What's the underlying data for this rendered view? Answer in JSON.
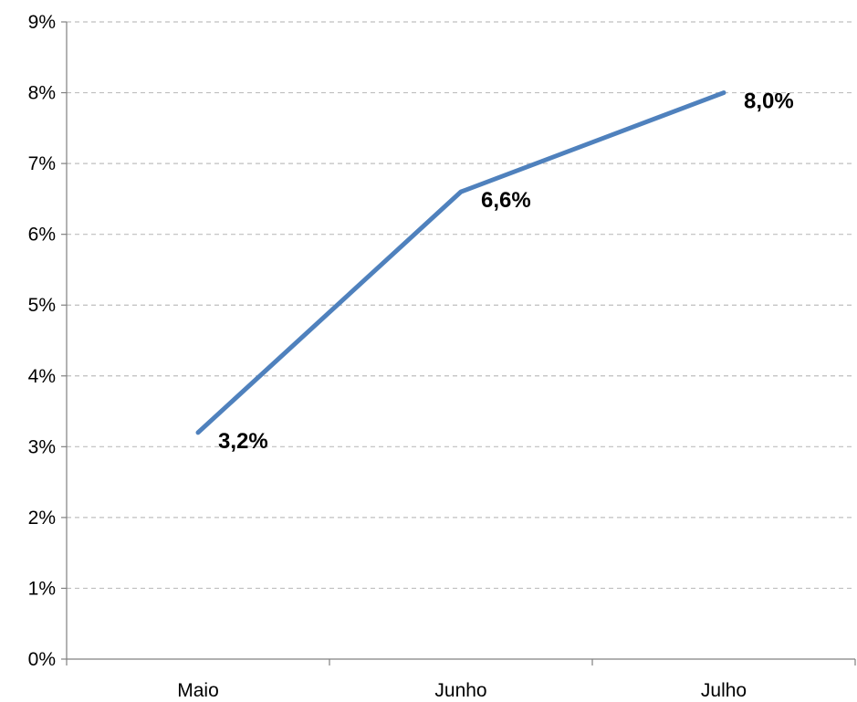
{
  "chart_data": {
    "type": "line",
    "title": "",
    "xlabel": "",
    "ylabel": "",
    "categories": [
      "Maio",
      "Junho",
      "Julho"
    ],
    "series": [
      {
        "values": [
          3.2,
          6.6,
          8.0
        ],
        "data_labels": [
          "3,2%",
          "6,6%",
          "8,0%"
        ],
        "color": "#4F81BD"
      }
    ],
    "ylim": [
      0,
      9
    ],
    "y_ticks": [
      0,
      1,
      2,
      3,
      4,
      5,
      6,
      7,
      8,
      9
    ],
    "y_tick_labels": [
      "0%",
      "1%",
      "2%",
      "3%",
      "4%",
      "5%",
      "6%",
      "7%",
      "8%",
      "9%"
    ],
    "grid": true,
    "grid_style": "dashed",
    "grid_color": "#BFBFBF",
    "axis_color": "#808080",
    "legend": "none"
  }
}
